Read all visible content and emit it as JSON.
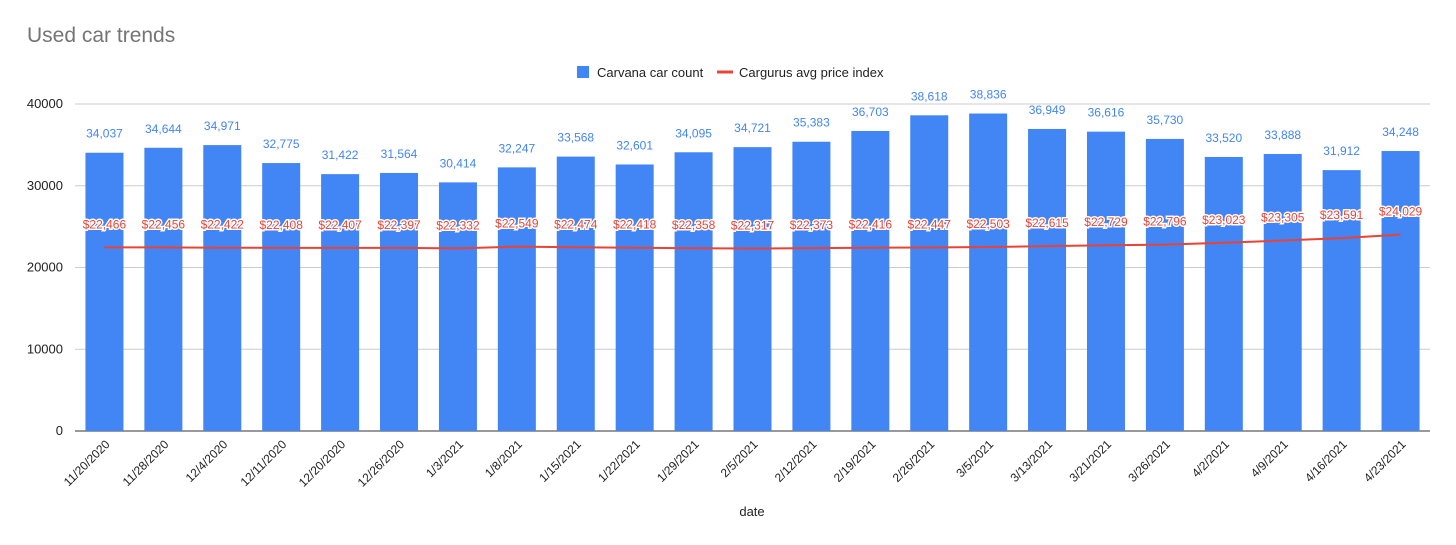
{
  "chart_data": {
    "type": "bar",
    "title": "Used car trends",
    "xlabel": "date",
    "ylabel": "",
    "ylim": [
      0,
      40000
    ],
    "yticks": [
      0,
      10000,
      20000,
      30000,
      40000
    ],
    "legend_position": "top-center",
    "grid": true,
    "categories": [
      "11/20/2020",
      "11/28/2020",
      "12/4/2020",
      "12/11/2020",
      "12/20/2020",
      "12/26/2020",
      "1/3/2021",
      "1/8/2021",
      "1/15/2021",
      "1/22/2021",
      "1/29/2021",
      "2/5/2021",
      "2/12/2021",
      "2/19/2021",
      "2/26/2021",
      "3/5/2021",
      "3/13/2021",
      "3/21/2021",
      "3/26/2021",
      "4/2/2021",
      "4/9/2021",
      "4/16/2021",
      "4/23/2021"
    ],
    "series": [
      {
        "name": "Carvana car count",
        "kind": "bar",
        "color": "#4285f4",
        "values": [
          34037,
          34644,
          34971,
          32775,
          31422,
          31564,
          30414,
          32247,
          33568,
          32601,
          34095,
          34721,
          35383,
          36703,
          38618,
          38836,
          36949,
          36616,
          35730,
          33520,
          33888,
          31912,
          34248
        ],
        "labels": [
          "34,037",
          "34,644",
          "34,971",
          "32,775",
          "31,422",
          "31,564",
          "30,414",
          "32,247",
          "33,568",
          "32,601",
          "34,095",
          "34,721",
          "35,383",
          "36,703",
          "38,618",
          "38,836",
          "36,949",
          "36,616",
          "35,730",
          "33,520",
          "33,888",
          "31,912",
          "34,248"
        ]
      },
      {
        "name": "Cargurus avg price index",
        "kind": "line",
        "color": "#ea4335",
        "values": [
          22466,
          22456,
          22422,
          22408,
          22407,
          22397,
          22332,
          22549,
          22474,
          22418,
          22358,
          22317,
          22373,
          22416,
          22447,
          22503,
          22615,
          22729,
          22796,
          23023,
          23305,
          23591,
          24029
        ],
        "labels": [
          "$22,466",
          "$22,456",
          "$22,422",
          "$22,408",
          "$22,407",
          "$22,397",
          "$22,332",
          "$22,549",
          "$22,474",
          "$22,418",
          "$22,358",
          "$22,317",
          "$22,373",
          "$22,416",
          "$22,447",
          "$22,503",
          "$22,615",
          "$22,729",
          "$22,796",
          "$23,023",
          "$23,305",
          "$23,591",
          "$24,029"
        ]
      }
    ]
  }
}
